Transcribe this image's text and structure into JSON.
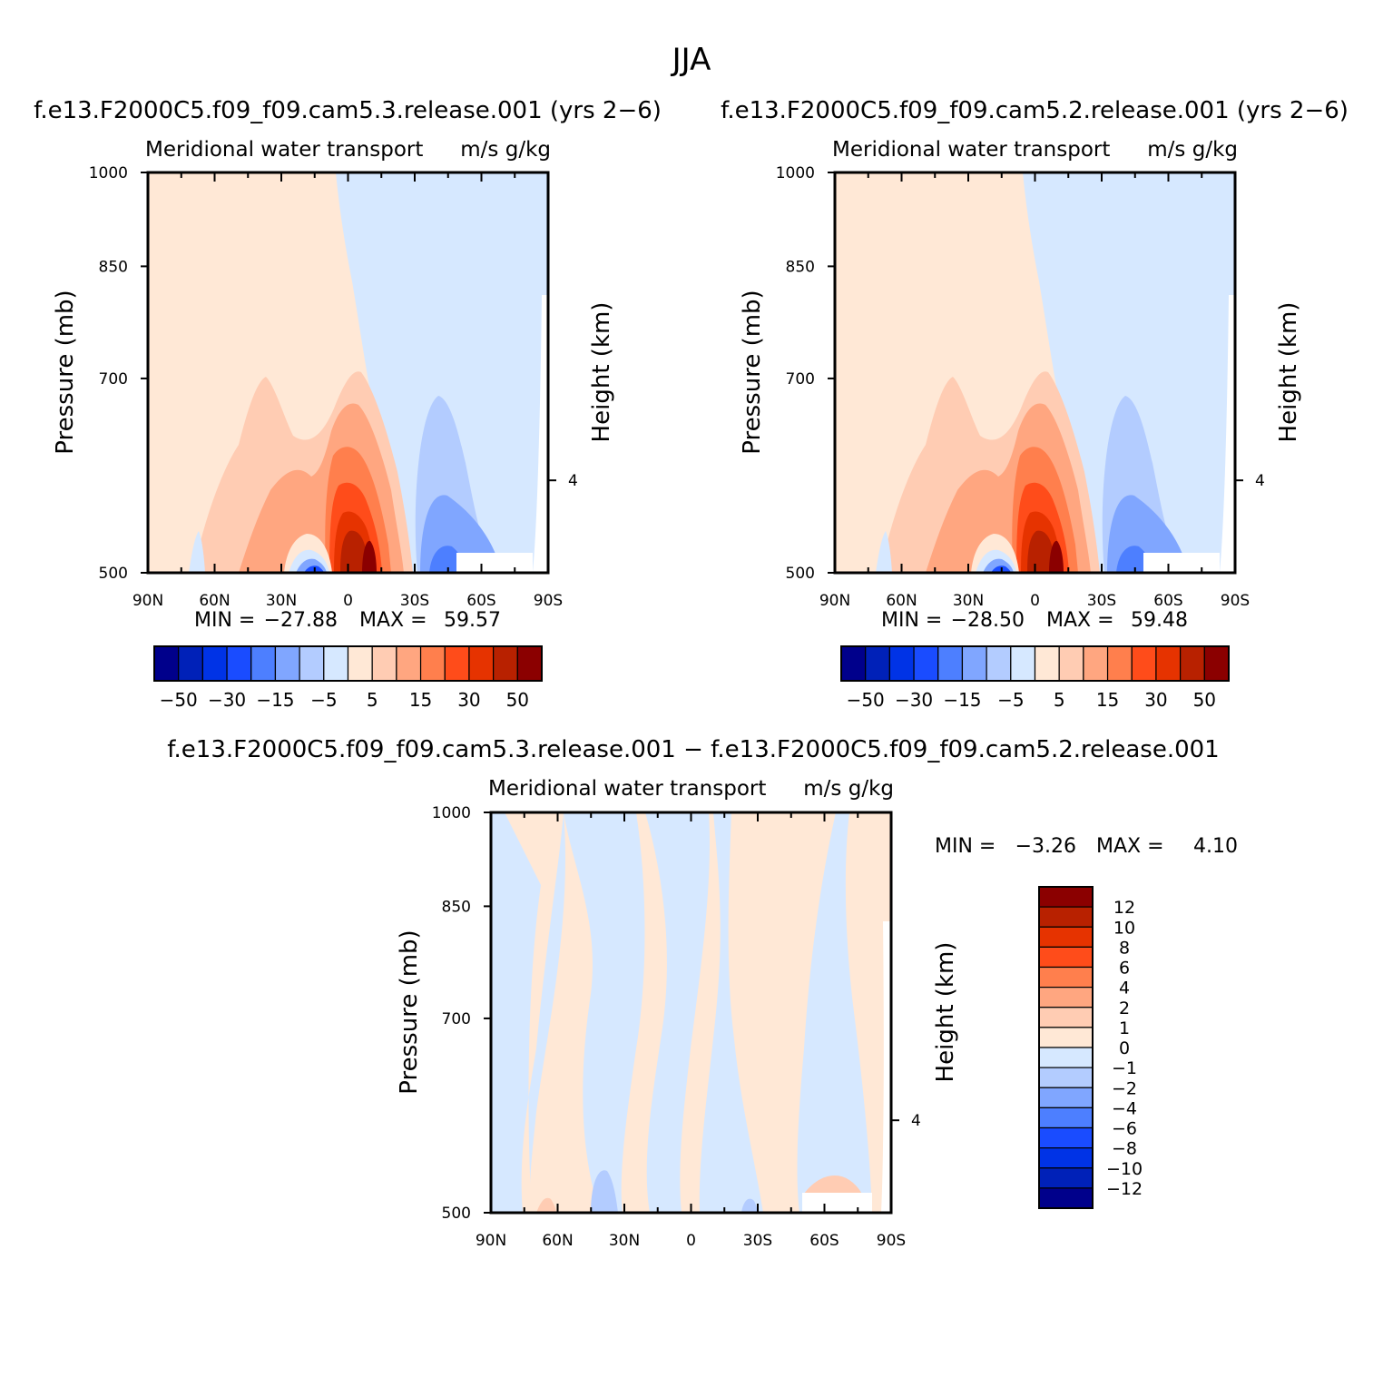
{
  "figure": {
    "title": "JJA"
  },
  "colors": {
    "main_scale": [
      "#00008b",
      "#0021b8",
      "#0033e6",
      "#1a4cff",
      "#4d7fff",
      "#80a6ff",
      "#b3ccff",
      "#d6e8ff",
      "#ffe8d6",
      "#ffccb3",
      "#ffa680",
      "#ff7f4d",
      "#ff4c1a",
      "#e63300",
      "#b82100",
      "#8b0000"
    ],
    "diff_scale": [
      "#00008b",
      "#0021b8",
      "#0033e6",
      "#1a4cff",
      "#4d7fff",
      "#80a6ff",
      "#b3ccff",
      "#d6e8ff",
      "#ffe8d6",
      "#ffccb3",
      "#ffa680",
      "#ff7f4d",
      "#ff4c1a",
      "#e63300",
      "#b82100",
      "#8b0000"
    ]
  },
  "chart_data": [
    {
      "type": "heatmap",
      "id": "panel1",
      "title": "f.e13.F2000C5.f09_f09.cam5.3.release.001 (yrs 2-6)",
      "subtitle_left": "Meridional water transport",
      "subtitle_right": "m/s g/kg",
      "ylabel": "Pressure (mb)",
      "ylabel_right": "Height (km)",
      "x_ticks": [
        "90N",
        "60N",
        "30N",
        "0",
        "30S",
        "60S",
        "90S"
      ],
      "y_ticks": [
        "500",
        "700",
        "850",
        "1000"
      ],
      "y_ticks_right": [
        "4"
      ],
      "ylim": [
        1000,
        500
      ],
      "min_label": "MIN =",
      "min_value": "-27.88",
      "max_label": "MAX =",
      "max_value": "59.57",
      "levels": [
        "-50",
        "-30",
        "-15",
        "-5",
        "5",
        "15",
        "30",
        "50"
      ],
      "min": -27.88,
      "max": 59.57
    },
    {
      "type": "heatmap",
      "id": "panel2",
      "title": "f.e13.F2000C5.f09_f09.cam5.2.release.001 (yrs 2-6)",
      "subtitle_left": "Meridional water transport",
      "subtitle_right": "m/s g/kg",
      "ylabel": "Pressure (mb)",
      "ylabel_right": "Height (km)",
      "x_ticks": [
        "90N",
        "60N",
        "30N",
        "0",
        "30S",
        "60S",
        "90S"
      ],
      "y_ticks": [
        "500",
        "700",
        "850",
        "1000"
      ],
      "y_ticks_right": [
        "4"
      ],
      "ylim": [
        1000,
        500
      ],
      "min_label": "MIN =",
      "min_value": "-28.50",
      "max_label": "MAX =",
      "max_value": "59.48",
      "levels": [
        "-50",
        "-30",
        "-15",
        "-5",
        "5",
        "15",
        "30",
        "50"
      ],
      "min": -28.5,
      "max": 59.48
    },
    {
      "type": "heatmap",
      "id": "panel3",
      "title": "f.e13.F2000C5.f09_f09.cam5.3.release.001 - f.e13.F2000C5.f09_f09.cam5.2.release.001",
      "subtitle_left": "Meridional water transport",
      "subtitle_right": "m/s g/kg",
      "ylabel": "Pressure (mb)",
      "ylabel_right": "Height (km)",
      "x_ticks": [
        "90N",
        "60N",
        "30N",
        "0",
        "30S",
        "60S",
        "90S"
      ],
      "y_ticks": [
        "500",
        "700",
        "850",
        "1000"
      ],
      "y_ticks_right": [
        "4"
      ],
      "ylim": [
        1000,
        500
      ],
      "min_label": "MIN =",
      "min_value": "-3.26",
      "max_label": "MAX =",
      "max_value": "4.10",
      "levels": [
        "12",
        "10",
        "8",
        "6",
        "4",
        "2",
        "1",
        "0",
        "-1",
        "-2",
        "-4",
        "-6",
        "-8",
        "-10",
        "-12"
      ],
      "min": -3.26,
      "max": 4.1
    }
  ]
}
